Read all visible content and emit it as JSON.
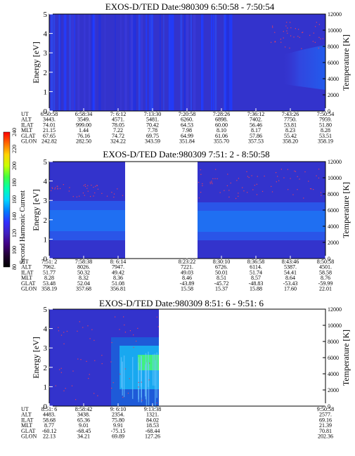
{
  "colorbar": {
    "label": "Second Harmonic Current",
    "ticks": [
      "240",
      "220",
      "200",
      "180",
      "160",
      "140",
      "120",
      "100",
      "80"
    ],
    "colors": [
      "#ff0000",
      "#ff6a00",
      "#ffd400",
      "#c8ff00",
      "#40ff40",
      "#00ffb0",
      "#00d8ff",
      "#0080ff",
      "#3030ff",
      "#4020c0",
      "#400080",
      "#200030",
      "#000000"
    ]
  },
  "chart_data": [
    {
      "type": "heatmap",
      "title": "EXOS-D/TED   Date:980309  6:50:58 - 7:50:54",
      "ylabel": "Energy [eV]",
      "ylabel_right": "Temperature [K]",
      "ylim": [
        0,
        5
      ],
      "ylim_right": [
        0,
        12000
      ],
      "yticks": [
        "0",
        "1",
        "2",
        "3",
        "4",
        "5"
      ],
      "yticks_right": [
        "0",
        "2000",
        "4000",
        "6000",
        "8000",
        "10000",
        "12000"
      ],
      "table": {
        "row_labels": [
          "UT",
          "ALT",
          "ILAT",
          "MLT",
          "GLAT",
          "GLON"
        ],
        "columns": [
          [
            "6:50:58",
            "3443.",
            "74.01",
            "21.15",
            "67.65",
            "242.82"
          ],
          [
            "6:58:34",
            "3549.",
            "999.00",
            "1.44",
            "76.16",
            "282.50"
          ],
          [
            "7: 6:12",
            "4571.",
            "78.05",
            "7.22",
            "74.72",
            "324.22"
          ],
          [
            "7:13:30",
            "5481.",
            "70.42",
            "7.78",
            "69.75",
            "343.59"
          ],
          [
            "7:20:58",
            "6260.",
            "64.53",
            "7.98",
            "64.99",
            "351.84"
          ],
          [
            "7:28:26",
            "6898.",
            "60.00",
            "8.10",
            "61.06",
            "355.70"
          ],
          [
            "7:36:12",
            "7402.",
            "56.46",
            "8.17",
            "57.86",
            "357.53"
          ],
          [
            "7:43:26",
            "7750.",
            "53.81",
            "8.23",
            "55.42",
            "358.20"
          ],
          [
            "7:50:54",
            "7959.",
            "51.80",
            "8.28",
            "53.51",
            "358.19"
          ]
        ]
      }
    },
    {
      "type": "heatmap",
      "title": "EXOS-D/TED   Date:980309  7:51: 2 - 8:50:58",
      "ylabel": "Energy [eV]",
      "ylabel_right": "Temperature [K]",
      "ylim": [
        0,
        5
      ],
      "ylim_right": [
        0,
        12000
      ],
      "yticks": [
        "0",
        "1",
        "2",
        "3",
        "4",
        "5"
      ],
      "yticks_right": [
        "0",
        "2000",
        "4000",
        "6000",
        "8000",
        "10000",
        "12000"
      ],
      "table": {
        "row_labels": [
          "UT",
          "ALT",
          "ILAT",
          "MLT",
          "GLAT",
          "GLON"
        ],
        "columns": [
          [
            "7:51: 2",
            "7962.",
            "51.77",
            "8.28",
            "53.48",
            "358.19"
          ],
          [
            "7:58:38",
            "8026.",
            "50.32",
            "8.32",
            "52.04",
            "357.68"
          ],
          [
            "8: 6:14",
            "7947.",
            "49.42",
            "8.36",
            "51.08",
            "356.81"
          ],
          [
            "8:23:22",
            "7221.",
            "49.03",
            "8.46",
            "-43.89",
            "15.58"
          ],
          [
            "8:30:10",
            "6726.",
            "50.01",
            "8.51",
            "-45.72",
            "15.37"
          ],
          [
            "8:36:58",
            "6114.",
            "51.74",
            "8.57",
            "-48.83",
            "15.88"
          ],
          [
            "8:43:46",
            "5387.",
            "54.41",
            "8.64",
            "-53.43",
            "17.60"
          ],
          [
            "8:50:58",
            "4501.",
            "58.58",
            "8.76",
            "-59.99",
            "22.01"
          ]
        ]
      }
    },
    {
      "type": "heatmap",
      "title": "EXOS-D/TED   Date:980309  8:51: 6 - 9:51: 6",
      "ylabel": "Energy [eV]",
      "ylabel_right": "Temperature [K]",
      "ylim": [
        0,
        5
      ],
      "ylim_right": [
        0,
        12000
      ],
      "yticks": [
        "0",
        "1",
        "2",
        "3",
        "4",
        "5"
      ],
      "yticks_right": [
        "0",
        "2000",
        "4000",
        "6000",
        "8000",
        "10000",
        "12000"
      ],
      "table": {
        "row_labels": [
          "UT",
          "ALT",
          "ILAT",
          "MLT",
          "GLAT",
          "GLON"
        ],
        "columns": [
          [
            "8:51: 6",
            "4483.",
            "58.68",
            "8.77",
            "-60.12",
            "22.13"
          ],
          [
            "8:58:42",
            "3438.",
            "65.36",
            "9.01",
            "-68.45",
            "34.21"
          ],
          [
            "9: 6:10",
            "2354.",
            "75.80",
            "9.91",
            "-75.15",
            "69.89"
          ],
          [
            "9:13:38",
            "1321.",
            "84.02",
            "18.53",
            "-68.44",
            "127.26"
          ],
          [
            "9:50:58",
            "2577.",
            "69.16",
            "21.39",
            "70.81",
            "202.36"
          ]
        ]
      }
    }
  ]
}
